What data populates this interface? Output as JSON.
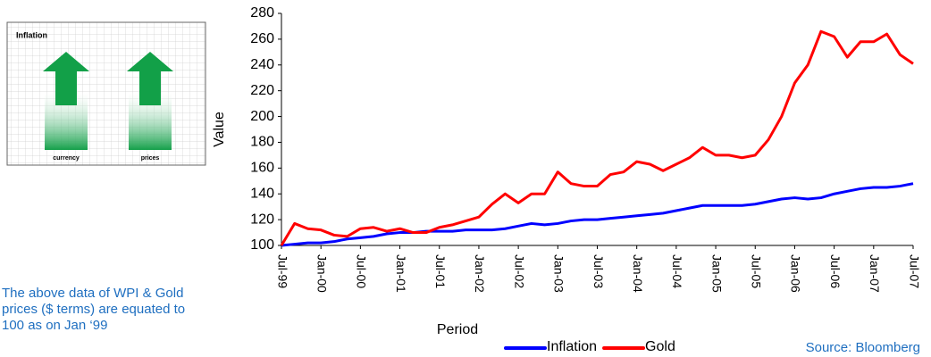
{
  "chart_data": {
    "type": "line",
    "x_label": "Period",
    "y_label": "Value",
    "source": "Source: Bloomberg",
    "categories": [
      "Jul-99",
      null,
      null,
      "Jan-00",
      null,
      null,
      "Jul-00",
      null,
      null,
      "Jan-01",
      null,
      null,
      "Jul-01",
      null,
      null,
      "Jan-02",
      null,
      null,
      "Jul-02",
      null,
      null,
      "Jan-03",
      null,
      null,
      "Jul-03",
      null,
      null,
      "Jan-04",
      null,
      null,
      "Jul-04",
      null,
      null,
      "Jan-05",
      null,
      null,
      "Jul-05",
      null,
      null,
      "Jan-06",
      null,
      null,
      "Jul-06",
      null,
      null,
      "Jan-07",
      null,
      null,
      "Jul-07"
    ],
    "series": [
      {
        "name": "Inflation",
        "color": "#0000ff",
        "values": [
          100,
          101,
          102,
          102,
          103,
          105,
          106,
          107,
          109,
          110,
          110,
          111,
          111,
          111,
          112,
          112,
          112,
          113,
          115,
          117,
          116,
          117,
          119,
          120,
          120,
          121,
          122,
          123,
          124,
          125,
          127,
          129,
          131,
          131,
          131,
          131,
          132,
          134,
          136,
          137,
          136,
          137,
          140,
          142,
          144,
          145,
          145,
          146,
          148
        ]
      },
      {
        "name": "Gold",
        "color": "#ff0000",
        "values": [
          100,
          117,
          113,
          112,
          108,
          107,
          113,
          114,
          111,
          113,
          110,
          110,
          114,
          116,
          119,
          122,
          132,
          140,
          133,
          140,
          140,
          157,
          148,
          146,
          146,
          155,
          157,
          165,
          163,
          158,
          163,
          168,
          176,
          170,
          170,
          168,
          170,
          182,
          200,
          226,
          240,
          266,
          262,
          246,
          258,
          258,
          264,
          248,
          241
        ]
      }
    ],
    "ylim": [
      100,
      280
    ],
    "yticks": [
      100,
      120,
      140,
      160,
      180,
      200,
      220,
      240,
      260,
      280
    ],
    "grid": false
  },
  "inset": {
    "title": "Inflation",
    "labels": [
      "currency",
      "prices"
    ]
  },
  "note": [
    "The above data of WPI & Gold",
    "prices ($ terms) are equated to",
    "100 as on Jan ‘99"
  ]
}
